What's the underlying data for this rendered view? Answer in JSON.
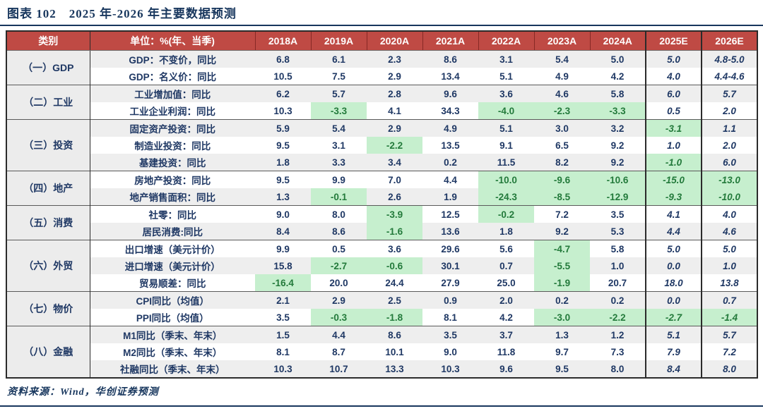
{
  "title": "图表 102　2025 年-2026 年主要数据预测",
  "source": "资料来源：Wind，华创证券预测",
  "colors": {
    "header_bg": "#bf4a44",
    "header_text": "#ffffff",
    "body_text_navy": "#1f3864",
    "negative_highlight_bg": "#c6efce",
    "negative_highlight_text": "#237a3b",
    "band_gray": "#eeeeee",
    "rule_navy": "#17365d"
  },
  "table": {
    "headers": [
      "类别",
      "单位：%(年、当季)",
      "2018A",
      "2019A",
      "2020A",
      "2021A",
      "2022A",
      "2023A",
      "2024A",
      "2025E",
      "2026E"
    ],
    "groups": [
      {
        "category": "（一）GDP",
        "rows": [
          {
            "label": "GDP：不变价，同比",
            "values": [
              "6.8",
              "6.1",
              "2.3",
              "8.6",
              "3.1",
              "5.4",
              "5.0",
              "5.0",
              "4.8-5.0"
            ]
          },
          {
            "label": "GDP：名义价：同比",
            "values": [
              "10.5",
              "7.5",
              "2.9",
              "13.4",
              "5.1",
              "4.9",
              "4.2",
              "4.0",
              "4.4-4.6"
            ]
          }
        ]
      },
      {
        "category": "（二）工业",
        "rows": [
          {
            "label": "工业增加值：同比",
            "values": [
              "6.2",
              "5.7",
              "2.8",
              "9.6",
              "3.6",
              "4.6",
              "5.8",
              "6.0",
              "5.7"
            ]
          },
          {
            "label": "工业企业利润：同比",
            "values": [
              "10.3",
              "-3.3",
              "4.1",
              "34.3",
              "-4.0",
              "-2.3",
              "-3.3",
              "0.5",
              "2.0"
            ]
          }
        ]
      },
      {
        "category": "（三）投资",
        "rows": [
          {
            "label": "固定资产投资：同比",
            "values": [
              "5.9",
              "5.4",
              "2.9",
              "4.9",
              "5.1",
              "3.0",
              "3.2",
              "-3.1",
              "1.1"
            ]
          },
          {
            "label": "制造业投资：同比",
            "values": [
              "9.5",
              "3.1",
              "-2.2",
              "13.5",
              "9.1",
              "6.5",
              "9.2",
              "1.0",
              "2.0"
            ]
          },
          {
            "label": "基建投资：同比",
            "values": [
              "1.8",
              "3.3",
              "3.4",
              "0.2",
              "11.5",
              "8.2",
              "9.2",
              "-1.0",
              "6.0"
            ]
          }
        ]
      },
      {
        "category": "（四）地产",
        "rows": [
          {
            "label": "房地产投资：同比",
            "values": [
              "9.5",
              "9.9",
              "7.0",
              "4.4",
              "-10.0",
              "-9.6",
              "-10.6",
              "-15.0",
              "-13.0"
            ]
          },
          {
            "label": "地产销售面积：同比",
            "values": [
              "1.3",
              "-0.1",
              "2.6",
              "1.9",
              "-24.3",
              "-8.5",
              "-12.9",
              "-9.3",
              "-10.0"
            ]
          }
        ]
      },
      {
        "category": "（五）消费",
        "rows": [
          {
            "label": "社零：同比",
            "values": [
              "9.0",
              "8.0",
              "-3.9",
              "12.5",
              "-0.2",
              "7.2",
              "3.5",
              "4.1",
              "4.0"
            ]
          },
          {
            "label": "居民消费:同比",
            "values": [
              "8.4",
              "8.6",
              "-1.6",
              "13.6",
              "1.8",
              "9.2",
              "5.3",
              "4.4",
              "4.6"
            ]
          }
        ]
      },
      {
        "category": "（六）外贸",
        "rows": [
          {
            "label": "出口增速（美元计价）",
            "values": [
              "9.9",
              "0.5",
              "3.6",
              "29.6",
              "5.6",
              "-4.7",
              "5.8",
              "5.0",
              "5.0"
            ]
          },
          {
            "label": "进口增速（美元计价）",
            "values": [
              "15.8",
              "-2.7",
              "-0.6",
              "30.1",
              "0.7",
              "-5.5",
              "1.0",
              "0.0",
              "1.0"
            ]
          },
          {
            "label": "贸易顺差：同比",
            "values": [
              "-16.4",
              "20.0",
              "24.4",
              "27.9",
              "25.0",
              "-1.9",
              "20.7",
              "18.0",
              "13.8"
            ]
          }
        ]
      },
      {
        "category": "（七）物价",
        "rows": [
          {
            "label": "CPI同比（均值）",
            "values": [
              "2.1",
              "2.9",
              "2.5",
              "0.9",
              "2.0",
              "0.2",
              "0.2",
              "0.0",
              "0.7"
            ]
          },
          {
            "label": "PPI同比（均值）",
            "values": [
              "3.5",
              "-0.3",
              "-1.8",
              "8.1",
              "4.2",
              "-3.0",
              "-2.2",
              "-2.7",
              "-1.4"
            ]
          }
        ]
      },
      {
        "category": "（八）金融",
        "rows": [
          {
            "label": "M1同比（季末、年末）",
            "values": [
              "1.5",
              "4.4",
              "8.6",
              "3.5",
              "3.7",
              "1.3",
              "1.2",
              "5.1",
              "5.7"
            ]
          },
          {
            "label": "M2同比（季末、年末）",
            "values": [
              "8.1",
              "8.7",
              "10.1",
              "9.0",
              "11.8",
              "9.7",
              "7.3",
              "7.9",
              "7.2"
            ]
          },
          {
            "label": "社融同比（季末、年末）",
            "values": [
              "10.3",
              "10.7",
              "13.3",
              "10.3",
              "9.6",
              "9.5",
              "8.0",
              "8.4",
              "8.0"
            ]
          }
        ]
      }
    ]
  }
}
